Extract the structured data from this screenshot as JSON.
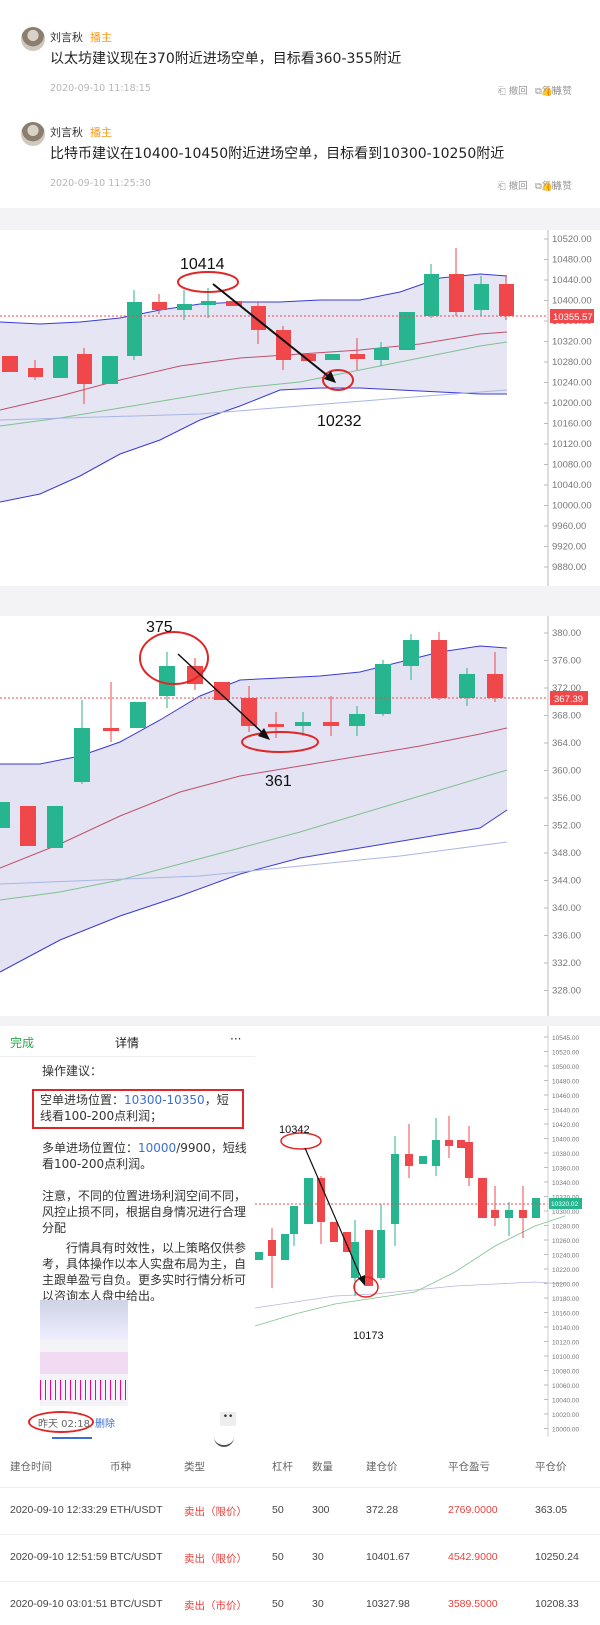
{
  "comments": [
    {
      "name": "刘言秋",
      "role": "播主",
      "text": "以太坊建议现在370附近进场空单，目标看360-355附近",
      "time": "2020-09-10 11:18:15",
      "withdraw": "撤回",
      "copy": "复制",
      "like": "点赞"
    },
    {
      "name": "刘言秋",
      "role": "播主",
      "text": "比特币建议在10400-10450附近进场空单，目标看到10300-10250附近",
      "time": "2020-09-10 11:25:30",
      "withdraw": "撤回",
      "copy": "复制",
      "like": "点赞"
    }
  ],
  "colors": {
    "up": "#26b58e",
    "down": "#f0474a",
    "band": "#dcdcf0",
    "upper": "#3a3ad6",
    "ma_red": "#c0506a",
    "ma_green": "#7fc28f",
    "annot": "#e02626"
  },
  "chart1": {
    "yticks": [
      "10520.00",
      "10480.00",
      "10440.00",
      "10400.00",
      "10360.00",
      "10320.00",
      "10280.00",
      "10240.00",
      "10200.00",
      "10160.00",
      "10120.00",
      "10080.00",
      "10040.00",
      "10000.00",
      "9960.00",
      "9920.00",
      "9880.00"
    ],
    "current_price": "10355.57",
    "high_label": "10414",
    "low_label": "10232"
  },
  "chart2": {
    "yticks": [
      "380.00",
      "376.00",
      "372.00",
      "368.00",
      "364.00",
      "360.00",
      "356.00",
      "352.00",
      "348.00",
      "344.00",
      "340.00",
      "336.00",
      "332.00",
      "328.00"
    ],
    "current_price": "367.39",
    "high_label": "375",
    "low_label": "361"
  },
  "chart3": {
    "yticks": [
      "10545.00",
      "10520.00",
      "10500.00",
      "10480.00",
      "10460.00",
      "10440.00",
      "10420.00",
      "10400.00",
      "10380.00",
      "10360.00",
      "10340.00",
      "10320.00",
      "10300.00",
      "10280.00",
      "10260.00",
      "10240.00",
      "10220.00",
      "10200.00",
      "10180.00",
      "10160.00",
      "10140.00",
      "10120.00",
      "10100.00",
      "10080.00",
      "10060.00",
      "10040.00",
      "10020.00",
      "10000.00"
    ],
    "current_price": "10320.02",
    "high_label": "10342",
    "low_label": "10173"
  },
  "phone": {
    "done": "完成",
    "title": "详情",
    "more": "···",
    "heading": "操作建议：",
    "short_prefix": "空单进场位置：",
    "short_range": "10300-10350",
    "short_suffix": "，短线看100-200点利润；",
    "long_prefix": "多单进场位置位：",
    "long_price": "10000",
    "long_suffix": "/9900，短线看100-200点利润。",
    "note": "注意，不同的位置进场利润空间不同，风控止损不同，根据自身情况进行合理分配",
    "disclaimer": "行情具有时效性，以上策略仅供参考，具体操作以本人实盘布局为主，自主跟单盈亏自负。更多实时行情分析可以咨询本人盘中给出。",
    "time": "昨天 02:18",
    "delete": "删除",
    "dots": "••"
  },
  "table": {
    "headers": [
      "建仓时间",
      "币种",
      "类型",
      "杠杆",
      "数量",
      "建仓价",
      "平仓盈亏",
      "平仓价"
    ],
    "rows": [
      [
        "2020-09-10 12:33:29",
        "ETH/USDT",
        "卖出（限价）",
        "50",
        "300",
        "372.28",
        "2769.0000",
        "363.05"
      ],
      [
        "2020-09-10 12:51:59",
        "BTC/USDT",
        "卖出（限价）",
        "50",
        "30",
        "10401.67",
        "4542.9000",
        "10250.24"
      ],
      [
        "2020-09-10 03:01:51",
        "BTC/USDT",
        "卖出（市价）",
        "50",
        "30",
        "10327.98",
        "3589.5000",
        "10208.33"
      ]
    ]
  }
}
